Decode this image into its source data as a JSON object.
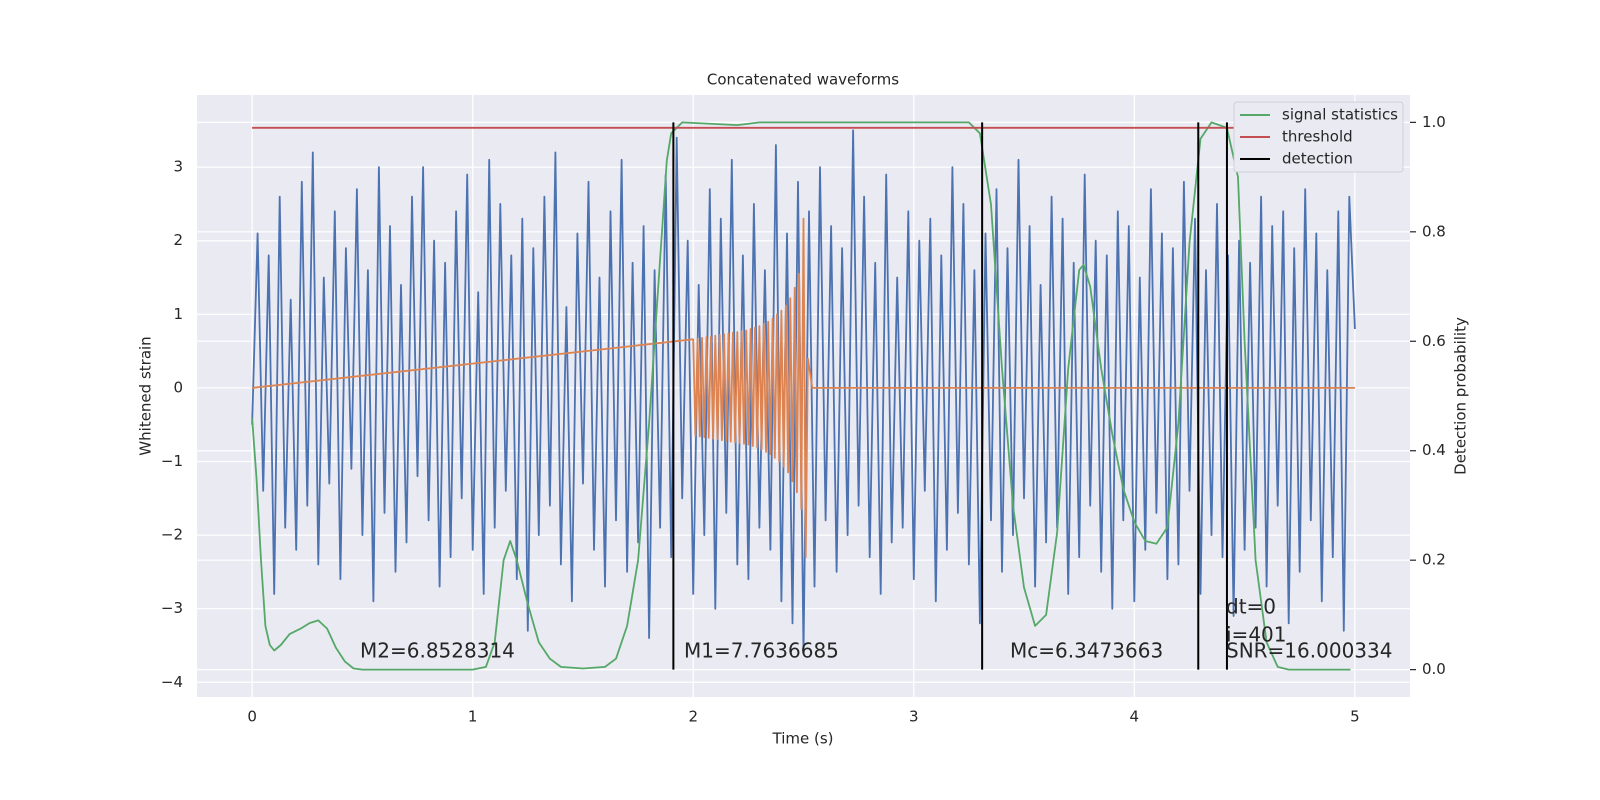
{
  "chart_data": {
    "type": "line",
    "title": "Concatenated waveforms",
    "x_label": "Time (s)",
    "y_label": "Whitened strain",
    "y2_label": "Detection probability",
    "xlim": [
      -0.25,
      5.25
    ],
    "xticks": [
      0,
      1,
      2,
      3,
      4,
      5
    ],
    "ylim": [
      -4.2,
      3.98
    ],
    "yticks": [
      {
        "value": -4,
        "label": "−4"
      },
      {
        "value": -3,
        "label": "−3"
      },
      {
        "value": -2,
        "label": "−2"
      },
      {
        "value": -1,
        "label": "−1"
      },
      0,
      1,
      2,
      3
    ],
    "y2lim": [
      -0.05,
      1.05
    ],
    "y2ticks": [
      {
        "value": 0,
        "label": "0.0"
      },
      0.2,
      0.4,
      0.6,
      0.8,
      {
        "value": 1,
        "label": "1.0"
      }
    ],
    "grid": true,
    "legend": "upper right",
    "annotations": [
      "M2=6.8528314",
      "M1=7.7636685",
      "Mc=6.3473663",
      "dt=0",
      "i=401",
      "SNR=16.000334"
    ],
    "series": [
      {
        "color": "#4c72b0",
        "x": [
          0,
          0.025,
          0.05,
          0.075,
          0.1,
          0.125,
          0.15,
          0.175,
          0.2,
          0.225,
          0.25,
          0.275,
          0.3,
          0.325,
          0.35,
          0.375,
          0.4,
          0.425,
          0.45,
          0.475,
          0.5,
          0.525,
          0.55,
          0.575,
          0.6,
          0.625,
          0.65,
          0.675,
          0.7,
          0.725,
          0.75,
          0.775,
          0.8,
          0.825,
          0.85,
          0.875,
          0.9,
          0.925,
          0.95,
          0.975,
          1,
          1.025,
          1.05,
          1.075,
          1.1,
          1.125,
          1.15,
          1.175,
          1.2,
          1.225,
          1.25,
          1.275,
          1.3,
          1.325,
          1.35,
          1.375,
          1.4,
          1.425,
          1.45,
          1.475,
          1.5,
          1.525,
          1.55,
          1.575,
          1.6,
          1.625,
          1.65,
          1.675,
          1.7,
          1.725,
          1.75,
          1.775,
          1.8,
          1.825,
          1.85,
          1.875,
          1.9,
          1.925,
          1.95,
          1.975,
          2,
          2.025,
          2.05,
          2.075,
          2.1,
          2.125,
          2.15,
          2.175,
          2.2,
          2.225,
          2.25,
          2.275,
          2.3,
          2.325,
          2.35,
          2.375,
          2.4,
          2.425,
          2.45,
          2.475,
          2.5,
          2.525,
          2.55,
          2.575,
          2.6,
          2.625,
          2.65,
          2.675,
          2.7,
          2.725,
          2.75,
          2.775,
          2.8,
          2.825,
          2.85,
          2.875,
          2.9,
          2.925,
          2.95,
          2.975,
          3,
          3.025,
          3.05,
          3.075,
          3.1,
          3.125,
          3.15,
          3.175,
          3.2,
          3.225,
          3.25,
          3.275,
          3.3,
          3.325,
          3.35,
          3.375,
          3.4,
          3.425,
          3.45,
          3.475,
          3.5,
          3.525,
          3.55,
          3.575,
          3.6,
          3.625,
          3.65,
          3.675,
          3.7,
          3.725,
          3.75,
          3.775,
          3.8,
          3.825,
          3.85,
          3.875,
          3.9,
          3.925,
          3.95,
          3.975,
          4,
          4.025,
          4.05,
          4.075,
          4.1,
          4.125,
          4.15,
          4.175,
          4.2,
          4.225,
          4.25,
          4.275,
          4.3,
          4.325,
          4.35,
          4.375,
          4.4,
          4.425,
          4.45,
          4.475,
          4.5,
          4.525,
          4.55,
          4.575,
          4.6,
          4.625,
          4.65,
          4.675,
          4.7,
          4.725,
          4.75,
          4.775,
          4.8,
          4.825,
          4.85,
          4.875,
          4.9,
          4.925,
          4.95,
          4.975,
          5
        ],
        "values": [
          -0.5,
          2.1,
          -1.4,
          1.8,
          -2.8,
          2.6,
          -1.9,
          1.2,
          -2.2,
          2.8,
          -1.6,
          3.2,
          -2.4,
          1.5,
          -1.3,
          2.4,
          -2.6,
          1.9,
          -1.1,
          2.7,
          -2.0,
          1.6,
          -2.9,
          3.0,
          -1.7,
          2.2,
          -2.5,
          1.4,
          -2.1,
          2.6,
          -1.2,
          3.0,
          -1.8,
          2.0,
          -2.7,
          1.7,
          -2.3,
          2.4,
          -1.5,
          2.9,
          -2.2,
          1.3,
          -2.8,
          3.1,
          -1.9,
          2.5,
          -1.4,
          1.8,
          -2.6,
          2.3,
          -3.3,
          1.9,
          -2.0,
          2.6,
          -1.6,
          3.2,
          -2.4,
          1.1,
          -2.9,
          2.1,
          -1.3,
          2.8,
          -2.2,
          1.5,
          -2.7,
          2.4,
          -1.8,
          3.1,
          -2.5,
          1.7,
          -2.1,
          2.2,
          -3.4,
          1.6,
          -1.9,
          2.9,
          -2.3,
          3.4,
          -1.5,
          2.0,
          -2.8,
          1.4,
          -2.0,
          2.7,
          -3.0,
          2.3,
          -1.7,
          3.1,
          -2.4,
          1.8,
          -2.6,
          2.5,
          -1.9,
          1.6,
          -2.2,
          3.3,
          -2.9,
          2.1,
          -3.2,
          2.8,
          -3.6,
          2.4,
          -2.7,
          3.0,
          -1.8,
          2.2,
          -2.5,
          1.9,
          -2.0,
          3.5,
          -1.6,
          2.6,
          -2.3,
          1.7,
          -2.8,
          2.9,
          -2.1,
          1.5,
          -1.9,
          2.4,
          -2.6,
          2.0,
          -1.4,
          2.3,
          -2.9,
          1.8,
          -2.2,
          3.0,
          -1.7,
          2.5,
          -2.4,
          1.6,
          -3.2,
          2.1,
          -1.8,
          2.7,
          -2.5,
          1.9,
          -2.0,
          3.1,
          -1.5,
          2.2,
          -2.7,
          1.4,
          -2.1,
          2.6,
          -1.9,
          2.3,
          -2.8,
          1.7,
          -2.3,
          2.9,
          -1.6,
          2.0,
          -2.5,
          1.8,
          -3.0,
          2.4,
          -1.8,
          2.2,
          -2.9,
          1.5,
          -2.2,
          2.7,
          -1.7,
          2.1,
          -2.6,
          1.9,
          -2.4,
          2.8,
          -1.4,
          2.3,
          -2.8,
          1.6,
          -2.0,
          2.5,
          -2.3,
          1.8,
          -3.1,
          2.0,
          -2.2,
          1.7,
          -1.9,
          2.6,
          -2.7,
          2.2,
          -1.6,
          2.4,
          -3.2,
          1.9,
          -2.5,
          2.7,
          -1.8,
          2.1,
          -2.9,
          1.6,
          -2.3,
          2.4,
          -3.3,
          2.6,
          0.8
        ]
      },
      {
        "color": "#dd8452",
        "x": [
          0,
          2.0,
          2.01,
          2.02,
          2.03,
          2.04,
          2.05,
          2.06,
          2.07,
          2.08,
          2.09,
          2.1,
          2.11,
          2.12,
          2.13,
          2.14,
          2.15,
          2.16,
          2.17,
          2.18,
          2.19,
          2.2,
          2.21,
          2.22,
          2.23,
          2.24,
          2.25,
          2.26,
          2.27,
          2.28,
          2.29,
          2.3,
          2.31,
          2.32,
          2.33,
          2.34,
          2.35,
          2.36,
          2.37,
          2.38,
          2.39,
          2.4,
          2.41,
          2.42,
          2.43,
          2.44,
          2.45,
          2.46,
          2.47,
          2.48,
          2.49,
          2.5,
          2.51,
          2.52,
          2.54,
          5
        ],
        "values": [
          0,
          0.66,
          -0.65,
          0.67,
          -0.66,
          0.68,
          -0.67,
          0.69,
          -0.68,
          0.7,
          -0.69,
          0.71,
          -0.7,
          0.72,
          -0.71,
          0.73,
          -0.72,
          0.74,
          -0.73,
          0.75,
          -0.74,
          0.76,
          -0.75,
          0.77,
          -0.76,
          0.78,
          -0.77,
          0.8,
          -0.79,
          0.82,
          -0.81,
          0.84,
          -0.84,
          0.87,
          -0.87,
          0.9,
          -0.9,
          0.94,
          -0.95,
          1.0,
          -1.0,
          1.05,
          -1.07,
          1.12,
          -1.15,
          1.22,
          -1.27,
          1.36,
          -1.42,
          1.55,
          -1.65,
          2.3,
          -2.3,
          0.4,
          0,
          0
        ]
      },
      {
        "name": "signal statistics",
        "color": "#55a868",
        "axis": "y2",
        "x": [
          0,
          0.02,
          0.04,
          0.06,
          0.08,
          0.1,
          0.13,
          0.17,
          0.22,
          0.26,
          0.3,
          0.34,
          0.38,
          0.42,
          0.46,
          0.5,
          1.0,
          1.06,
          1.1,
          1.14,
          1.17,
          1.2,
          1.25,
          1.3,
          1.35,
          1.4,
          1.5,
          1.6,
          1.65,
          1.7,
          1.75,
          1.8,
          1.85,
          1.88,
          1.9,
          1.95,
          2.2,
          2.3,
          3.25,
          3.3,
          3.35,
          3.4,
          3.45,
          3.5,
          3.55,
          3.6,
          3.65,
          3.7,
          3.75,
          3.77,
          3.8,
          3.85,
          3.9,
          3.95,
          4.0,
          4.05,
          4.1,
          4.15,
          4.2,
          4.25,
          4.3,
          4.35,
          4.42,
          4.47,
          4.5,
          4.55,
          4.6,
          4.65,
          4.7,
          4.98
        ],
        "values": [
          0.46,
          0.35,
          0.2,
          0.08,
          0.045,
          0.035,
          0.045,
          0.065,
          0.075,
          0.085,
          0.09,
          0.075,
          0.04,
          0.015,
          0.002,
          0,
          0,
          0.005,
          0.05,
          0.2,
          0.235,
          0.2,
          0.12,
          0.05,
          0.02,
          0.005,
          0.002,
          0.005,
          0.02,
          0.08,
          0.2,
          0.45,
          0.75,
          0.93,
          0.98,
          1.0,
          0.995,
          1.0,
          1.0,
          0.98,
          0.85,
          0.55,
          0.3,
          0.15,
          0.08,
          0.1,
          0.25,
          0.55,
          0.73,
          0.74,
          0.7,
          0.55,
          0.43,
          0.33,
          0.27,
          0.235,
          0.23,
          0.26,
          0.45,
          0.78,
          0.97,
          1.0,
          0.99,
          0.9,
          0.6,
          0.2,
          0.05,
          0.005,
          0,
          0
        ]
      },
      {
        "name": "threshold",
        "color": "#c44e52",
        "axis": "y2",
        "x": [
          0,
          5
        ],
        "values": [
          0.99,
          0.99
        ]
      },
      {
        "name": "detection",
        "color": "#000000",
        "axis": "y2",
        "x": [
          1.91,
          3.31,
          4.29,
          4.42
        ]
      }
    ]
  }
}
